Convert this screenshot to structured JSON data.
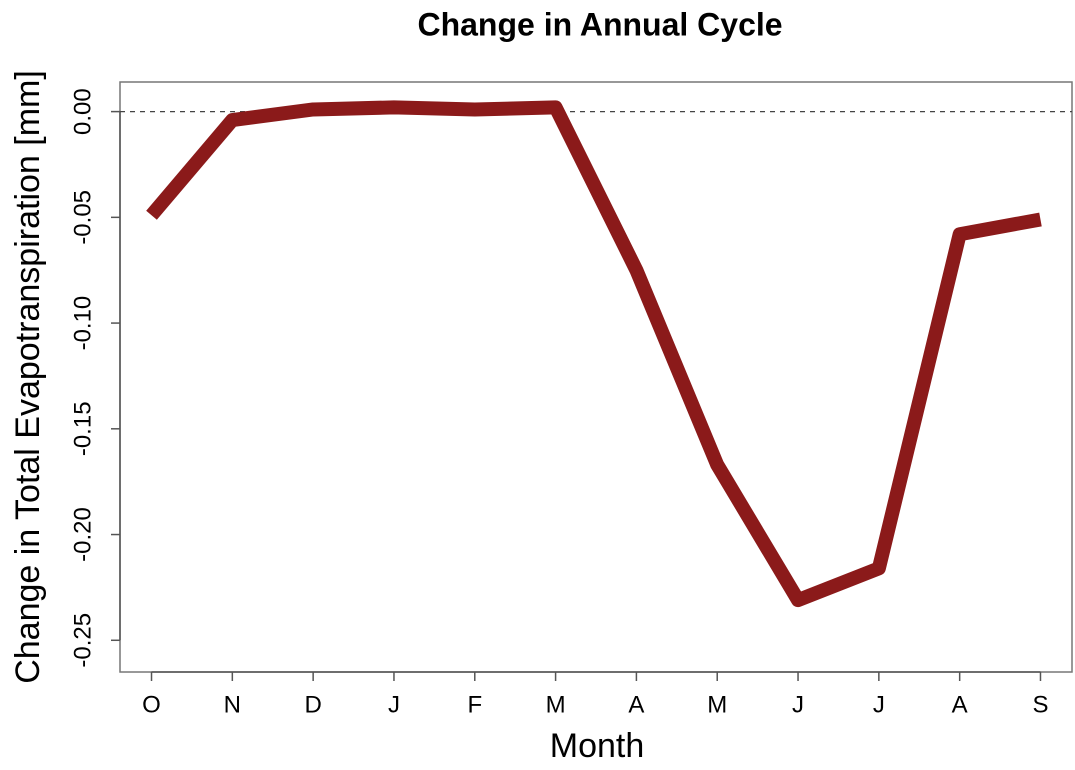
{
  "chart_data": {
    "type": "line",
    "title": "Change in Annual Cycle",
    "xlabel": "Month",
    "ylabel": "Change in Total Evapotranspiration [mm]",
    "categories": [
      "O",
      "N",
      "D",
      "J",
      "F",
      "M",
      "A",
      "M",
      "J",
      "J",
      "A",
      "S"
    ],
    "series": [
      {
        "color": "#8b1a1a",
        "values": [
          -0.049,
          -0.004,
          0.001,
          0.002,
          0.001,
          0.002,
          -0.075,
          -0.167,
          -0.231,
          -0.216,
          -0.058,
          -0.051
        ]
      }
    ],
    "ylim": [
      -0.265,
      0.014
    ],
    "yticks": [
      {
        "value": 0,
        "label": "0.00"
      },
      {
        "value": -0.05,
        "label": "-0.05"
      },
      {
        "value": -0.1,
        "label": "-0.10"
      },
      {
        "value": -0.15,
        "label": "-0.15"
      },
      {
        "value": -0.2,
        "label": "-0.20"
      },
      {
        "value": -0.25,
        "label": "-0.25"
      }
    ],
    "hline": 0
  }
}
